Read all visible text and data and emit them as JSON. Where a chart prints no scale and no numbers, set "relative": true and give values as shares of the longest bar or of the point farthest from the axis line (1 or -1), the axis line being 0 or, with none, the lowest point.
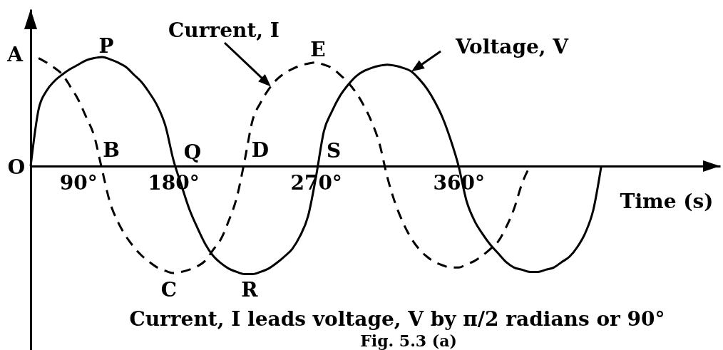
{
  "chart_data": {
    "type": "line",
    "relative": true,
    "xlabel": "Time (s)",
    "categories": [
      null,
      null,
      null,
      null,
      null,
      null,
      "90°",
      null,
      null,
      null,
      null,
      null,
      null,
      null,
      null,
      null,
      null,
      null,
      "180°",
      null,
      null,
      null,
      null,
      null,
      null,
      null,
      null,
      null,
      null,
      null,
      null,
      null,
      null,
      null,
      null,
      null,
      "270°",
      null,
      null,
      null,
      null,
      null,
      null,
      null,
      null,
      null,
      null,
      null,
      null,
      null,
      null,
      null,
      null,
      null,
      "360°",
      null,
      null,
      null,
      null,
      null,
      null,
      null,
      null,
      null,
      null,
      null,
      null,
      null,
      null,
      null,
      null,
      null,
      null,
      null,
      null,
      null,
      null,
      null,
      null,
      null,
      null,
      null,
      null,
      null,
      null,
      null,
      null,
      null
    ],
    "series": [
      {
        "name": "Voltage, V",
        "color": "#000000",
        "line_style": "solid",
        "values": [
          0,
          0.52,
          0.69,
          0.78,
          0.84,
          0.89,
          0.93,
          0.97,
          0.99,
          1,
          0.98,
          0.95,
          0.91,
          0.84,
          0.77,
          0.67,
          0.55,
          0.37,
          0.06,
          -0.17,
          -0.39,
          -0.56,
          -0.71,
          -0.82,
          -0.89,
          -0.94,
          -0.97,
          -0.99,
          -0.99,
          -0.97,
          -0.94,
          -0.89,
          -0.83,
          -0.76,
          -0.64,
          -0.46,
          -0.1,
          0.32,
          0.5,
          0.64,
          0.74,
          0.82,
          0.87,
          0.9,
          0.92,
          0.93,
          0.92,
          0.9,
          0.87,
          0.8,
          0.71,
          0.59,
          0.44,
          0.24,
          0,
          -0.32,
          -0.5,
          -0.62,
          -0.72,
          -0.8,
          -0.88,
          -0.93,
          -0.95,
          -0.97,
          -0.97,
          -0.95,
          -0.93,
          -0.88,
          -0.83,
          -0.74,
          -0.61,
          -0.4,
          0,
          null,
          null,
          null,
          null,
          null,
          null,
          null,
          null,
          null,
          null,
          null,
          null,
          null,
          null,
          null
        ]
      },
      {
        "name": "Current, I",
        "color": "#000000",
        "line_style": "dashed",
        "values": [
          null,
          0.99,
          0.95,
          0.9,
          0.84,
          0.73,
          0.61,
          0.45,
          0.28,
          -0.03,
          -0.33,
          -0.51,
          -0.64,
          -0.74,
          -0.82,
          -0.88,
          -0.93,
          -0.96,
          -0.98,
          -0.97,
          -0.95,
          -0.92,
          -0.87,
          -0.77,
          -0.67,
          -0.5,
          -0.29,
          0.05,
          0.42,
          0.58,
          0.7,
          0.79,
          0.85,
          0.89,
          0.92,
          0.94,
          0.95,
          0.93,
          0.9,
          0.84,
          0.77,
          0.68,
          0.56,
          0.41,
          0.21,
          -0.1,
          -0.34,
          -0.52,
          -0.66,
          -0.76,
          -0.83,
          -0.88,
          -0.91,
          -0.93,
          -0.93,
          -0.9,
          -0.87,
          -0.82,
          -0.76,
          -0.69,
          -0.56,
          -0.39,
          -0.16,
          0,
          null,
          null,
          null,
          null,
          null,
          null,
          null,
          null,
          null,
          null,
          null,
          null,
          null,
          null,
          null,
          null,
          null,
          null,
          null,
          null,
          null,
          null,
          null,
          null
        ]
      }
    ],
    "annotations": [
      "O",
      "A",
      "P",
      "B",
      "Q",
      "C",
      "R",
      "D",
      "E",
      "S",
      "Current, I leads voltage, V by π/2 radians or 90°",
      "Fig. 5.3 (a)"
    ]
  }
}
